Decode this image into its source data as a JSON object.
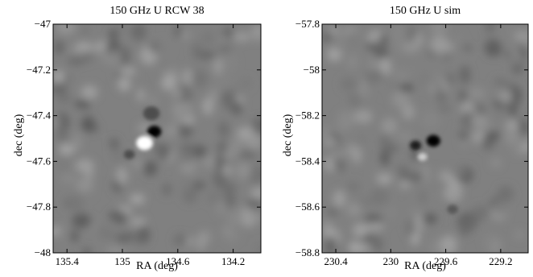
{
  "chart_data": [
    {
      "type": "heatmap",
      "title": "150 GHz U RCW 38",
      "xlabel": "RA (deg)",
      "ylabel": "dec (deg)",
      "xlim": [
        135.5,
        134.0
      ],
      "ylim": [
        -48.0,
        -47.0
      ],
      "x_ticks": [
        135.4,
        135,
        134.6,
        134.2
      ],
      "x_tick_labels": [
        "135.4",
        "135",
        "134.6",
        "134.2"
      ],
      "y_ticks": [
        -47,
        -47.2,
        -47.4,
        -47.6,
        -47.8,
        -48
      ],
      "y_tick_labels": [
        "−47",
        "−47.2",
        "−47.4",
        "−47.6",
        "−47.8",
        "−48"
      ],
      "colormap": "gray",
      "background_level": 0.5,
      "features": [
        {
          "ra": 134.77,
          "dec": -47.47,
          "level": 0.0,
          "size_deg": 0.05
        },
        {
          "ra": 134.84,
          "dec": -47.52,
          "level": 1.0,
          "size_deg": 0.06
        },
        {
          "ra": 134.79,
          "dec": -47.39,
          "level": 0.3,
          "size_deg": 0.06
        },
        {
          "ra": 134.95,
          "dec": -47.57,
          "level": 0.3,
          "size_deg": 0.04
        }
      ]
    },
    {
      "type": "heatmap",
      "title": "150 GHz U sim",
      "xlabel": "RA (deg)",
      "ylabel": "dec (deg)",
      "xlim": [
        230.5,
        229.0
      ],
      "ylim": [
        -58.8,
        -57.8
      ],
      "x_ticks": [
        230.4,
        230,
        229.6,
        229.2
      ],
      "x_tick_labels": [
        "230.4",
        "230",
        "229.6",
        "229.2"
      ],
      "y_ticks": [
        -57.8,
        -58,
        -58.2,
        -58.4,
        -58.6,
        -58.8
      ],
      "y_tick_labels": [
        "−57.8",
        "−58",
        "−58.2",
        "−58.4",
        "−58.6",
        "−58.8"
      ],
      "colormap": "gray",
      "background_level": 0.5,
      "features": [
        {
          "ra": 229.69,
          "dec": -58.31,
          "level": 0.0,
          "size_deg": 0.05
        },
        {
          "ra": 229.82,
          "dec": -58.33,
          "level": 0.1,
          "size_deg": 0.04
        },
        {
          "ra": 229.77,
          "dec": -58.38,
          "level": 0.8,
          "size_deg": 0.035
        },
        {
          "ra": 229.55,
          "dec": -58.61,
          "level": 0.35,
          "size_deg": 0.04
        }
      ]
    }
  ]
}
